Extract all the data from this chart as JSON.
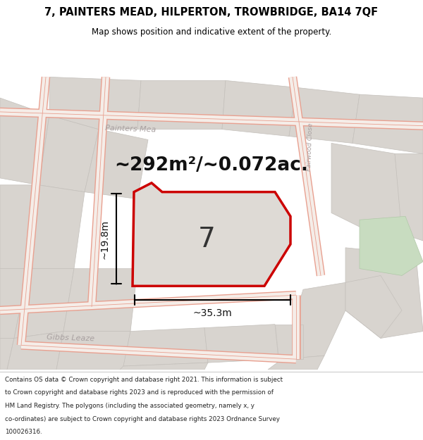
{
  "title_line1": "7, PAINTERS MEAD, HILPERTON, TROWBRIDGE, BA14 7QF",
  "title_line2": "Map shows position and indicative extent of the property.",
  "area_text": "~292m²/~0.072ac.",
  "width_label": "~35.3m",
  "height_label": "~19.8m",
  "number_label": "7",
  "footer_lines": [
    "Contains OS data © Crown copyright and database right 2021. This information is subject",
    "to Crown copyright and database rights 2023 and is reproduced with the permission of",
    "HM Land Registry. The polygons (including the associated geometry, namely x, y",
    "co-ordinates) are subject to Crown copyright and database rights 2023 Ordnance Survey",
    "100026316."
  ],
  "map_bg": "#e8e4df",
  "block_fill": "#d8d4cf",
  "block_edge": "#c4c0bb",
  "red_outline": "#cc0000",
  "plot_fill": "#dedad5",
  "green_fill": "#c8dcc0",
  "green_edge": "#b0c8a8",
  "road_fill": "#f5ede8",
  "road_edge": "#e8a090",
  "label_color": "#a8a0a0",
  "header_bg": "#ffffff",
  "footer_bg": "#ffffff",
  "dim_color": "#111111",
  "text_color": "#222222"
}
